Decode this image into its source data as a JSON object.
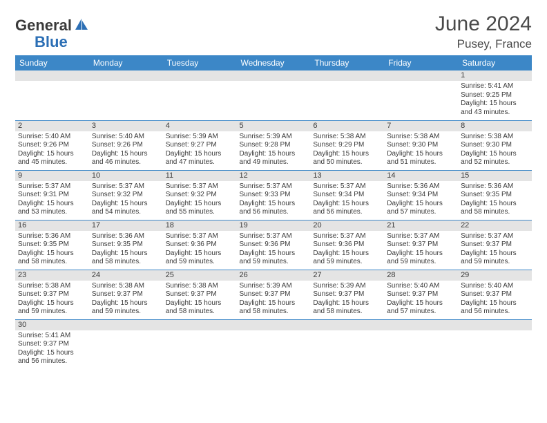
{
  "logo": {
    "text1": "General",
    "text2": "Blue"
  },
  "header": {
    "title": "June 2024",
    "location": "Pusey, France"
  },
  "colors": {
    "header_bg": "#3c87c7",
    "header_text": "#ffffff",
    "daynum_bg": "#e4e4e4",
    "border": "#3c87c7",
    "text": "#3a3a3a",
    "logo_blue": "#2c6fb5"
  },
  "weekdays": [
    "Sunday",
    "Monday",
    "Tuesday",
    "Wednesday",
    "Thursday",
    "Friday",
    "Saturday"
  ],
  "weeks": [
    [
      null,
      null,
      null,
      null,
      null,
      null,
      {
        "n": "1",
        "sr": "Sunrise: 5:41 AM",
        "ss": "Sunset: 9:25 PM",
        "d1": "Daylight: 15 hours",
        "d2": "and 43 minutes."
      }
    ],
    [
      {
        "n": "2",
        "sr": "Sunrise: 5:40 AM",
        "ss": "Sunset: 9:26 PM",
        "d1": "Daylight: 15 hours",
        "d2": "and 45 minutes."
      },
      {
        "n": "3",
        "sr": "Sunrise: 5:40 AM",
        "ss": "Sunset: 9:26 PM",
        "d1": "Daylight: 15 hours",
        "d2": "and 46 minutes."
      },
      {
        "n": "4",
        "sr": "Sunrise: 5:39 AM",
        "ss": "Sunset: 9:27 PM",
        "d1": "Daylight: 15 hours",
        "d2": "and 47 minutes."
      },
      {
        "n": "5",
        "sr": "Sunrise: 5:39 AM",
        "ss": "Sunset: 9:28 PM",
        "d1": "Daylight: 15 hours",
        "d2": "and 49 minutes."
      },
      {
        "n": "6",
        "sr": "Sunrise: 5:38 AM",
        "ss": "Sunset: 9:29 PM",
        "d1": "Daylight: 15 hours",
        "d2": "and 50 minutes."
      },
      {
        "n": "7",
        "sr": "Sunrise: 5:38 AM",
        "ss": "Sunset: 9:30 PM",
        "d1": "Daylight: 15 hours",
        "d2": "and 51 minutes."
      },
      {
        "n": "8",
        "sr": "Sunrise: 5:38 AM",
        "ss": "Sunset: 9:30 PM",
        "d1": "Daylight: 15 hours",
        "d2": "and 52 minutes."
      }
    ],
    [
      {
        "n": "9",
        "sr": "Sunrise: 5:37 AM",
        "ss": "Sunset: 9:31 PM",
        "d1": "Daylight: 15 hours",
        "d2": "and 53 minutes."
      },
      {
        "n": "10",
        "sr": "Sunrise: 5:37 AM",
        "ss": "Sunset: 9:32 PM",
        "d1": "Daylight: 15 hours",
        "d2": "and 54 minutes."
      },
      {
        "n": "11",
        "sr": "Sunrise: 5:37 AM",
        "ss": "Sunset: 9:32 PM",
        "d1": "Daylight: 15 hours",
        "d2": "and 55 minutes."
      },
      {
        "n": "12",
        "sr": "Sunrise: 5:37 AM",
        "ss": "Sunset: 9:33 PM",
        "d1": "Daylight: 15 hours",
        "d2": "and 56 minutes."
      },
      {
        "n": "13",
        "sr": "Sunrise: 5:37 AM",
        "ss": "Sunset: 9:34 PM",
        "d1": "Daylight: 15 hours",
        "d2": "and 56 minutes."
      },
      {
        "n": "14",
        "sr": "Sunrise: 5:36 AM",
        "ss": "Sunset: 9:34 PM",
        "d1": "Daylight: 15 hours",
        "d2": "and 57 minutes."
      },
      {
        "n": "15",
        "sr": "Sunrise: 5:36 AM",
        "ss": "Sunset: 9:35 PM",
        "d1": "Daylight: 15 hours",
        "d2": "and 58 minutes."
      }
    ],
    [
      {
        "n": "16",
        "sr": "Sunrise: 5:36 AM",
        "ss": "Sunset: 9:35 PM",
        "d1": "Daylight: 15 hours",
        "d2": "and 58 minutes."
      },
      {
        "n": "17",
        "sr": "Sunrise: 5:36 AM",
        "ss": "Sunset: 9:35 PM",
        "d1": "Daylight: 15 hours",
        "d2": "and 58 minutes."
      },
      {
        "n": "18",
        "sr": "Sunrise: 5:37 AM",
        "ss": "Sunset: 9:36 PM",
        "d1": "Daylight: 15 hours",
        "d2": "and 59 minutes."
      },
      {
        "n": "19",
        "sr": "Sunrise: 5:37 AM",
        "ss": "Sunset: 9:36 PM",
        "d1": "Daylight: 15 hours",
        "d2": "and 59 minutes."
      },
      {
        "n": "20",
        "sr": "Sunrise: 5:37 AM",
        "ss": "Sunset: 9:36 PM",
        "d1": "Daylight: 15 hours",
        "d2": "and 59 minutes."
      },
      {
        "n": "21",
        "sr": "Sunrise: 5:37 AM",
        "ss": "Sunset: 9:37 PM",
        "d1": "Daylight: 15 hours",
        "d2": "and 59 minutes."
      },
      {
        "n": "22",
        "sr": "Sunrise: 5:37 AM",
        "ss": "Sunset: 9:37 PM",
        "d1": "Daylight: 15 hours",
        "d2": "and 59 minutes."
      }
    ],
    [
      {
        "n": "23",
        "sr": "Sunrise: 5:38 AM",
        "ss": "Sunset: 9:37 PM",
        "d1": "Daylight: 15 hours",
        "d2": "and 59 minutes."
      },
      {
        "n": "24",
        "sr": "Sunrise: 5:38 AM",
        "ss": "Sunset: 9:37 PM",
        "d1": "Daylight: 15 hours",
        "d2": "and 59 minutes."
      },
      {
        "n": "25",
        "sr": "Sunrise: 5:38 AM",
        "ss": "Sunset: 9:37 PM",
        "d1": "Daylight: 15 hours",
        "d2": "and 58 minutes."
      },
      {
        "n": "26",
        "sr": "Sunrise: 5:39 AM",
        "ss": "Sunset: 9:37 PM",
        "d1": "Daylight: 15 hours",
        "d2": "and 58 minutes."
      },
      {
        "n": "27",
        "sr": "Sunrise: 5:39 AM",
        "ss": "Sunset: 9:37 PM",
        "d1": "Daylight: 15 hours",
        "d2": "and 58 minutes."
      },
      {
        "n": "28",
        "sr": "Sunrise: 5:40 AM",
        "ss": "Sunset: 9:37 PM",
        "d1": "Daylight: 15 hours",
        "d2": "and 57 minutes."
      },
      {
        "n": "29",
        "sr": "Sunrise: 5:40 AM",
        "ss": "Sunset: 9:37 PM",
        "d1": "Daylight: 15 hours",
        "d2": "and 56 minutes."
      }
    ],
    [
      {
        "n": "30",
        "sr": "Sunrise: 5:41 AM",
        "ss": "Sunset: 9:37 PM",
        "d1": "Daylight: 15 hours",
        "d2": "and 56 minutes."
      },
      null,
      null,
      null,
      null,
      null,
      null
    ]
  ]
}
